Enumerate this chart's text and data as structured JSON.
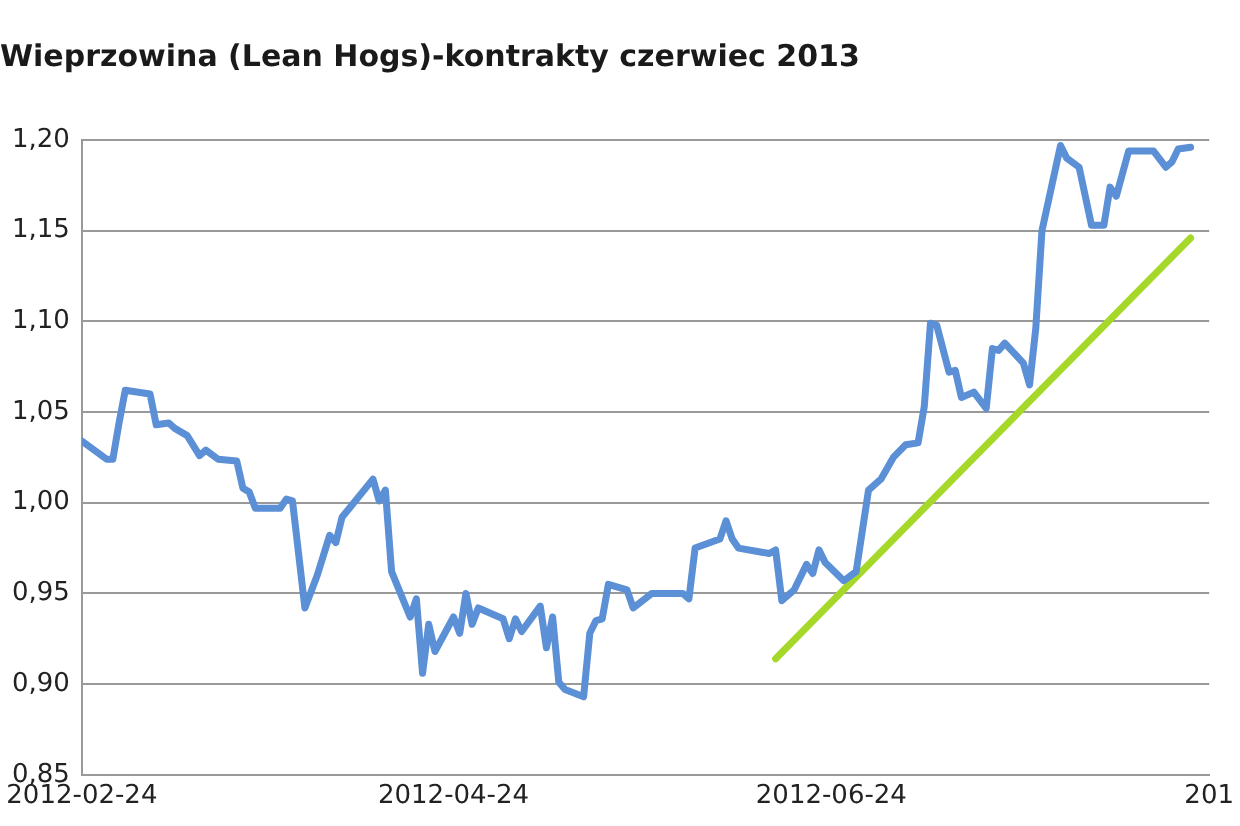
{
  "chart_data": {
    "type": "line",
    "title": "Wieprzowina (Lean Hogs)-kontrakty czerwiec 2013",
    "xlim": [
      "2012-02-24",
      "2012-08-24"
    ],
    "xticks": [
      "2012-02-24",
      "2012-04-24",
      "2012-06-24",
      {
        "value": "2012-08-24",
        "label": "201"
      }
    ],
    "ylim": [
      0.85,
      1.2
    ],
    "yticks": [
      {
        "value": 0.85,
        "label": "0,85"
      },
      {
        "value": 0.9,
        "label": "0,90"
      },
      {
        "value": 0.95,
        "label": "0,95"
      },
      {
        "value": 1.0,
        "label": "1,00"
      },
      {
        "value": 1.05,
        "label": "1,05"
      },
      {
        "value": 1.1,
        "label": "1,10"
      },
      {
        "value": 1.15,
        "label": "1,15"
      },
      {
        "value": 1.2,
        "label": "1,20"
      }
    ],
    "grid": "y",
    "legend": false,
    "marker": "none",
    "line_style": "solid",
    "series": [
      {
        "color": "#5b8fd6",
        "x": [
          "2012-02-24",
          "2012-02-28",
          "2012-02-29",
          "2012-03-01",
          "2012-03-02",
          "2012-03-06",
          "2012-03-07",
          "2012-03-09",
          "2012-03-10",
          "2012-03-12",
          "2012-03-14",
          "2012-03-15",
          "2012-03-17",
          "2012-03-20",
          "2012-03-21",
          "2012-03-22",
          "2012-03-23",
          "2012-03-27",
          "2012-03-28",
          "2012-03-29",
          "2012-03-31",
          "2012-04-02",
          "2012-04-04",
          "2012-04-05",
          "2012-04-06",
          "2012-04-11",
          "2012-04-12",
          "2012-04-13",
          "2012-04-14",
          "2012-04-17",
          "2012-04-18",
          "2012-04-19",
          "2012-04-20",
          "2012-04-21",
          "2012-04-24",
          "2012-04-25",
          "2012-04-26",
          "2012-04-27",
          "2012-04-28",
          "2012-05-02",
          "2012-05-03",
          "2012-05-04",
          "2012-05-05",
          "2012-05-08",
          "2012-05-09",
          "2012-05-10",
          "2012-05-11",
          "2012-05-12",
          "2012-05-15",
          "2012-05-16",
          "2012-05-17",
          "2012-05-18",
          "2012-05-19",
          "2012-05-22",
          "2012-05-23",
          "2012-05-26",
          "2012-05-31",
          "2012-06-01",
          "2012-06-02",
          "2012-06-06",
          "2012-06-07",
          "2012-06-08",
          "2012-06-09",
          "2012-06-14",
          "2012-06-15",
          "2012-06-16",
          "2012-06-18",
          "2012-06-20",
          "2012-06-21",
          "2012-06-22",
          "2012-06-23",
          "2012-06-26",
          "2012-06-28",
          "2012-06-30",
          "2012-07-02",
          "2012-07-04",
          "2012-07-06",
          "2012-07-08",
          "2012-07-09",
          "2012-07-10",
          "2012-07-11",
          "2012-07-13",
          "2012-07-14",
          "2012-07-15",
          "2012-07-17",
          "2012-07-19",
          "2012-07-20",
          "2012-07-21",
          "2012-07-22",
          "2012-07-25",
          "2012-07-26",
          "2012-07-27",
          "2012-07-28",
          "2012-07-31",
          "2012-08-01",
          "2012-08-03",
          "2012-08-05",
          "2012-08-07",
          "2012-08-08",
          "2012-08-09",
          "2012-08-11",
          "2012-08-15",
          "2012-08-17",
          "2012-08-18",
          "2012-08-19",
          "2012-08-21"
        ],
        "values": [
          1.034,
          1.024,
          1.024,
          1.044,
          1.062,
          1.06,
          1.043,
          1.044,
          1.041,
          1.037,
          1.026,
          1.029,
          1.024,
          1.023,
          1.008,
          1.006,
          0.997,
          0.997,
          1.002,
          1.001,
          0.942,
          0.96,
          0.982,
          0.978,
          0.992,
          1.013,
          1.001,
          1.007,
          0.962,
          0.937,
          0.947,
          0.906,
          0.933,
          0.918,
          0.937,
          0.928,
          0.95,
          0.933,
          0.942,
          0.936,
          0.925,
          0.936,
          0.929,
          0.943,
          0.92,
          0.937,
          0.901,
          0.897,
          0.893,
          0.928,
          0.935,
          0.936,
          0.955,
          0.952,
          0.942,
          0.95,
          0.95,
          0.947,
          0.975,
          0.98,
          0.99,
          0.98,
          0.975,
          0.972,
          0.974,
          0.946,
          0.952,
          0.966,
          0.961,
          0.974,
          0.967,
          0.957,
          0.962,
          1.007,
          1.013,
          1.025,
          1.032,
          1.033,
          1.053,
          1.099,
          1.098,
          1.072,
          1.073,
          1.058,
          1.061,
          1.052,
          1.085,
          1.084,
          1.088,
          1.077,
          1.065,
          1.096,
          1.15,
          1.197,
          1.19,
          1.185,
          1.153,
          1.153,
          1.174,
          1.169,
          1.194,
          1.194,
          1.185,
          1.188,
          1.195,
          1.196
        ]
      },
      {
        "color": "#a6d82a",
        "x": [
          "2012-06-15",
          "2012-08-21"
        ],
        "values": [
          0.914,
          1.146
        ]
      }
    ]
  }
}
